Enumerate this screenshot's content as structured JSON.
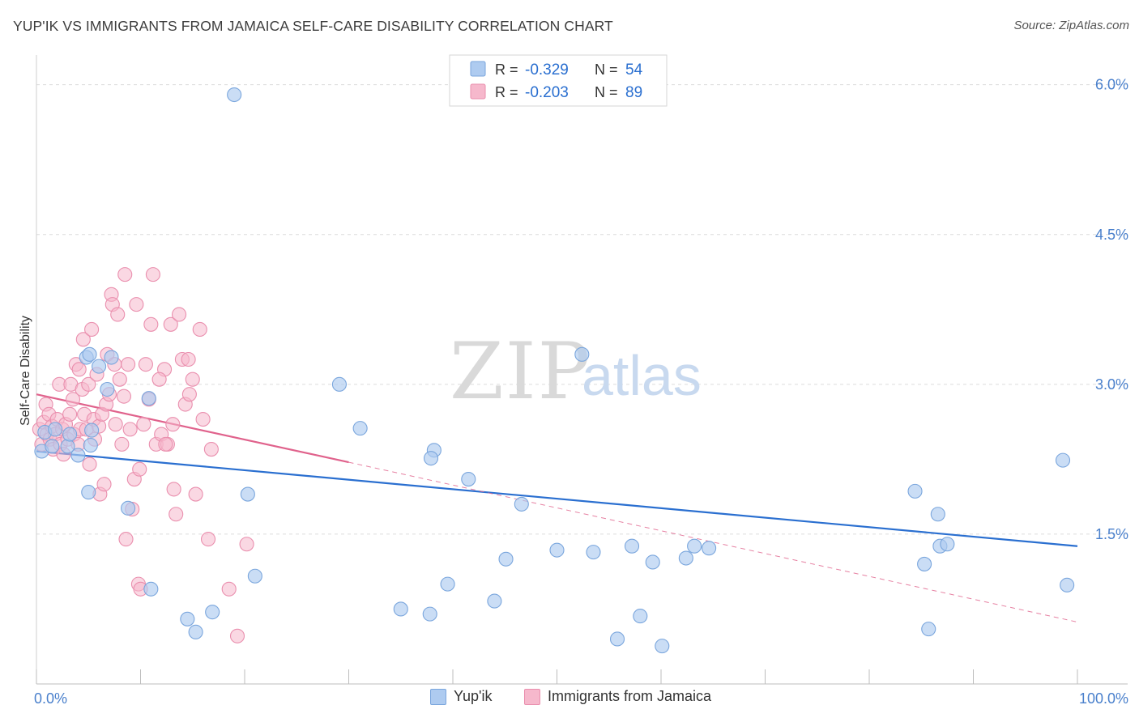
{
  "title": "YUP'IK VS IMMIGRANTS FROM JAMAICA SELF-CARE DISABILITY CORRELATION CHART",
  "source": "Source: ZipAtlas.com",
  "watermark": {
    "zip": "ZIP",
    "atlas": "atlas"
  },
  "legend_top": [
    {
      "r_label": "R =",
      "r_value": "-0.329",
      "n_label": "N =",
      "n_value": "54"
    },
    {
      "r_label": "R =",
      "r_value": "-0.203",
      "n_label": "N =",
      "n_value": "89"
    }
  ],
  "legend_bottom": [
    "Yup'ik",
    "Immigrants from Jamaica"
  ],
  "colors": {
    "blue_fill": "#aecbf0",
    "blue_stroke": "#7aa6dd",
    "blue_line": "#2a6fd0",
    "pink_fill": "#f6b8cc",
    "pink_stroke": "#ea8fae",
    "pink_line": "#e0628c",
    "tick_label": "#4a80cc",
    "grid": "#dcdcdc"
  },
  "chart_data": {
    "type": "scatter",
    "xlabel": "",
    "ylabel": "Self-Care Disability",
    "xlim": [
      0,
      100
    ],
    "ylim": [
      0.0,
      6.2
    ],
    "x_tick_labels": [
      "0.0%",
      "100.0%"
    ],
    "y_ticks": [
      1.5,
      3.0,
      4.5,
      6.0
    ],
    "y_tick_labels": [
      "1.5%",
      "3.0%",
      "4.5%",
      "6.0%"
    ],
    "grid": true,
    "legend_placement": "top-center",
    "series": [
      {
        "name": "Yup'ik",
        "points": [
          [
            0.5,
            2.33
          ],
          [
            0.8,
            2.52
          ],
          [
            1.5,
            2.38
          ],
          [
            1.8,
            2.55
          ],
          [
            3.0,
            2.38
          ],
          [
            3.2,
            2.5
          ],
          [
            4.0,
            2.29
          ],
          [
            4.8,
            3.27
          ],
          [
            5.0,
            1.92
          ],
          [
            5.2,
            2.39
          ],
          [
            5.1,
            3.3
          ],
          [
            5.3,
            2.54
          ],
          [
            6.0,
            3.18
          ],
          [
            6.8,
            2.95
          ],
          [
            7.2,
            3.27
          ],
          [
            8.8,
            1.76
          ],
          [
            10.8,
            2.86
          ],
          [
            11.0,
            0.95
          ],
          [
            14.5,
            0.65
          ],
          [
            15.3,
            0.52
          ],
          [
            16.9,
            0.72
          ],
          [
            19.0,
            5.9
          ],
          [
            20.3,
            1.9
          ],
          [
            21.0,
            1.08
          ],
          [
            29.1,
            3.0
          ],
          [
            31.1,
            2.56
          ],
          [
            35.0,
            0.75
          ],
          [
            37.8,
            0.7
          ],
          [
            38.2,
            2.34
          ],
          [
            37.9,
            2.26
          ],
          [
            39.5,
            1.0
          ],
          [
            41.5,
            2.05
          ],
          [
            44.0,
            0.83
          ],
          [
            45.1,
            1.25
          ],
          [
            46.6,
            1.8
          ],
          [
            50.0,
            1.34
          ],
          [
            52.4,
            3.3
          ],
          [
            53.5,
            1.32
          ],
          [
            55.8,
            0.45
          ],
          [
            57.2,
            1.38
          ],
          [
            58.0,
            0.68
          ],
          [
            59.2,
            1.22
          ],
          [
            60.1,
            0.38
          ],
          [
            62.4,
            1.26
          ],
          [
            63.2,
            1.38
          ],
          [
            64.6,
            1.36
          ],
          [
            85.3,
            1.2
          ],
          [
            84.4,
            1.93
          ],
          [
            86.6,
            1.7
          ],
          [
            86.8,
            1.38
          ],
          [
            85.7,
            0.55
          ],
          [
            87.5,
            1.4
          ],
          [
            98.6,
            2.24
          ],
          [
            99.0,
            0.99
          ]
        ]
      },
      {
        "name": "Immigrants from Jamaica",
        "points": [
          [
            0.3,
            2.55
          ],
          [
            0.5,
            2.4
          ],
          [
            0.7,
            2.62
          ],
          [
            0.9,
            2.8
          ],
          [
            1.0,
            2.5
          ],
          [
            1.2,
            2.7
          ],
          [
            1.3,
            2.45
          ],
          [
            1.5,
            2.58
          ],
          [
            1.6,
            2.35
          ],
          [
            1.8,
            2.5
          ],
          [
            2.0,
            2.65
          ],
          [
            2.2,
            3.0
          ],
          [
            2.3,
            2.4
          ],
          [
            2.5,
            2.55
          ],
          [
            2.6,
            2.3
          ],
          [
            2.8,
            2.6
          ],
          [
            3.0,
            2.45
          ],
          [
            3.2,
            2.7
          ],
          [
            3.3,
            3.0
          ],
          [
            3.5,
            2.85
          ],
          [
            3.6,
            2.5
          ],
          [
            3.8,
            3.2
          ],
          [
            4.0,
            2.4
          ],
          [
            4.1,
            3.15
          ],
          [
            4.2,
            2.55
          ],
          [
            4.4,
            2.95
          ],
          [
            4.5,
            3.45
          ],
          [
            4.6,
            2.7
          ],
          [
            4.8,
            2.55
          ],
          [
            5.0,
            3.0
          ],
          [
            5.1,
            2.2
          ],
          [
            5.3,
            3.55
          ],
          [
            5.5,
            2.65
          ],
          [
            5.6,
            2.45
          ],
          [
            5.8,
            3.1
          ],
          [
            6.0,
            2.58
          ],
          [
            6.1,
            1.9
          ],
          [
            6.3,
            2.7
          ],
          [
            6.5,
            2.0
          ],
          [
            6.7,
            2.8
          ],
          [
            6.8,
            3.3
          ],
          [
            7.0,
            2.9
          ],
          [
            7.2,
            3.9
          ],
          [
            7.3,
            3.8
          ],
          [
            7.5,
            3.2
          ],
          [
            7.6,
            2.6
          ],
          [
            7.8,
            3.7
          ],
          [
            8.0,
            3.05
          ],
          [
            8.2,
            2.4
          ],
          [
            8.4,
            2.88
          ],
          [
            8.5,
            4.1
          ],
          [
            8.6,
            1.45
          ],
          [
            8.8,
            3.2
          ],
          [
            9.0,
            2.55
          ],
          [
            9.2,
            1.75
          ],
          [
            9.4,
            2.05
          ],
          [
            9.6,
            3.8
          ],
          [
            9.8,
            1.0
          ],
          [
            10.0,
            0.95
          ],
          [
            10.3,
            2.6
          ],
          [
            10.5,
            3.2
          ],
          [
            10.8,
            2.85
          ],
          [
            11.0,
            3.6
          ],
          [
            11.2,
            4.1
          ],
          [
            11.5,
            2.4
          ],
          [
            12.0,
            2.5
          ],
          [
            12.3,
            3.15
          ],
          [
            12.6,
            2.4
          ],
          [
            12.9,
            3.6
          ],
          [
            13.1,
            2.6
          ],
          [
            13.4,
            1.7
          ],
          [
            13.7,
            3.7
          ],
          [
            14.0,
            3.25
          ],
          [
            14.3,
            2.8
          ],
          [
            14.7,
            2.9
          ],
          [
            15.0,
            3.05
          ],
          [
            15.3,
            1.9
          ],
          [
            15.7,
            3.55
          ],
          [
            16.0,
            2.65
          ],
          [
            16.5,
            1.45
          ],
          [
            18.5,
            0.95
          ],
          [
            19.3,
            0.48
          ],
          [
            20.2,
            1.4
          ],
          [
            16.8,
            2.35
          ],
          [
            12.4,
            2.4
          ],
          [
            13.2,
            1.95
          ],
          [
            9.9,
            2.15
          ],
          [
            11.8,
            3.05
          ],
          [
            14.6,
            3.25
          ]
        ]
      }
    ],
    "trend_lines": [
      {
        "series": "Yup'ik",
        "x": [
          0,
          100
        ],
        "y": [
          2.33,
          1.38
        ]
      },
      {
        "series": "Immigrants from Jamaica",
        "x": [
          0,
          30
        ],
        "y": [
          2.9,
          2.22
        ],
        "dashed_extension_to": [
          100,
          0.62
        ]
      }
    ]
  }
}
